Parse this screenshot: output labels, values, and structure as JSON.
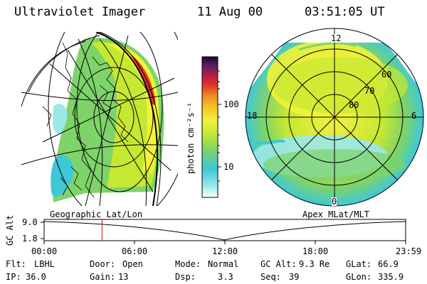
{
  "header": {
    "instrument": "Ultraviolet Imager",
    "date": "11 Aug 00",
    "time": "03:51:05 UT"
  },
  "colorbar": {
    "label": "photon cm⁻²s⁻¹",
    "ticks": [
      {
        "label": "100",
        "value": 100
      },
      {
        "label": "10",
        "value": 10
      }
    ],
    "colors": [
      "#ffffff",
      "#9be8e8",
      "#3ec8d8",
      "#7ed36a",
      "#c5e832",
      "#f2f23a",
      "#f2c428",
      "#ef8c2a",
      "#e03225",
      "#b41e4a",
      "#5a1f62",
      "#150a2e"
    ]
  },
  "left_panel": {
    "label": "Geographic Lat/Lon"
  },
  "right_panel": {
    "label": "Apex MLat/MLT",
    "mlt_labels": {
      "top": "12",
      "left": "18",
      "right": "6",
      "bottom": "0"
    },
    "lat_labels": [
      "60",
      "70",
      "80"
    ]
  },
  "timeline": {
    "ylabel": "GC Alt",
    "y_top": "9.0",
    "y_bottom": "1.8",
    "ticks": [
      "00:00",
      "06:00",
      "12:00",
      "18:00",
      "23:59"
    ],
    "marker_fraction": 0.16,
    "marker_color": "#e00000"
  },
  "status": {
    "row1": [
      {
        "key": "Flt:",
        "value": "LBHL"
      },
      {
        "key": "Door:",
        "value": "Open"
      },
      {
        "key": "Mode:",
        "value": "Normal"
      },
      {
        "key": "GC Alt:",
        "value": "9.3 Re"
      },
      {
        "key": "GLat:",
        "value": "66.9"
      }
    ],
    "row2": [
      {
        "key": "IP:",
        "value": "36.0"
      },
      {
        "key": "Gain:",
        "value": "13"
      },
      {
        "key": "Dsp:",
        "value": "3.3"
      },
      {
        "key": "Seq:",
        "value": "39"
      },
      {
        "key": "GLon:",
        "value": "335.9"
      }
    ]
  }
}
